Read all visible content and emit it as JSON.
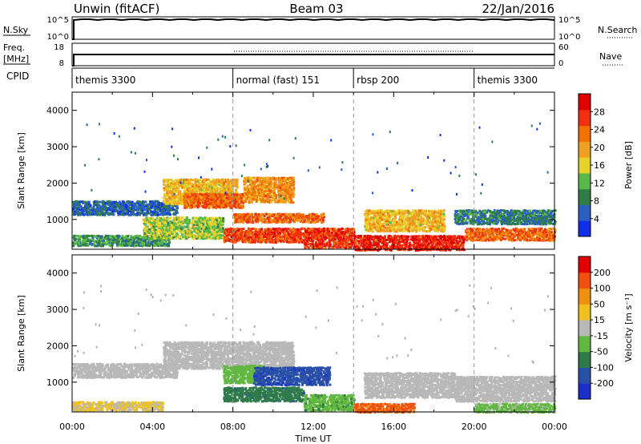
{
  "header": {
    "site": "Unwin (fitACF)",
    "beam": "Beam 03",
    "date": "22/Jan/2016"
  },
  "panels": {
    "nsky_label": "N.Sky",
    "nsky_ticks": [
      "10^5",
      "10^0"
    ],
    "nsearch_label": "N.Search",
    "freq_label": "Freq.",
    "freq_unit": "[MHz]",
    "freq_ticks": [
      "18",
      "8"
    ],
    "nave_label": "Nave",
    "nave_ticks": [
      "60",
      "0"
    ],
    "cpid_label": "CPID"
  },
  "cpid_segments": [
    {
      "label": "themis 3300",
      "start_hr": 0,
      "end_hr": 8
    },
    {
      "label": "normal (fast) 151",
      "start_hr": 8,
      "end_hr": 14
    },
    {
      "label": "rbsp 200",
      "start_hr": 14,
      "end_hr": 20
    },
    {
      "label": "themis 3300",
      "start_hr": 20,
      "end_hr": 24
    }
  ],
  "colors": {
    "power_scale": [
      "#1030e8",
      "#2a5fc0",
      "#2e7d46",
      "#58b848",
      "#e8d02a",
      "#f0a020",
      "#f07000",
      "#f03010",
      "#e00000"
    ],
    "velocity_scale": [
      "#1a30c8",
      "#2850a8",
      "#2e7a4a",
      "#60b840",
      "#b8b8b8",
      "#f0c020",
      "#f09010",
      "#f05010",
      "#e00000"
    ],
    "scatter_grey": "#b4b4b4"
  },
  "chart_data": [
    {
      "type": "heatmap",
      "name": "Power",
      "xlabel": "",
      "ylabel": "Slant Range [km]",
      "xlim": [
        0,
        24
      ],
      "ylim": [
        180,
        4500
      ],
      "yticks": [
        1000,
        2000,
        3000,
        4000
      ],
      "colorbar_label": "Power [dB]",
      "colorbar_ticks": [
        "4",
        "8",
        "12",
        "16",
        "20",
        "24",
        "28"
      ],
      "colorbar_range": [
        0,
        32
      ],
      "echo_bands": [
        {
          "t0": 0.0,
          "t1": 5.2,
          "r0": 1150,
          "r1": 1550,
          "value": 6
        },
        {
          "t0": 0.0,
          "t1": 4.8,
          "r0": 300,
          "r1": 600,
          "value": 10
        },
        {
          "t0": 4.5,
          "t1": 8.2,
          "r0": 1450,
          "r1": 2150,
          "value": 18
        },
        {
          "t0": 5.5,
          "t1": 8.5,
          "r0": 1350,
          "r1": 1750,
          "value": 24
        },
        {
          "t0": 8.5,
          "t1": 11.0,
          "r0": 1500,
          "r1": 2200,
          "value": 21
        },
        {
          "t0": 3.5,
          "t1": 7.5,
          "r0": 500,
          "r1": 1100,
          "value": 14
        },
        {
          "t0": 8.0,
          "t1": 12.5,
          "r0": 950,
          "r1": 1200,
          "value": 24
        },
        {
          "t0": 7.5,
          "t1": 11.5,
          "r0": 400,
          "r1": 800,
          "value": 26
        },
        {
          "t0": 11.5,
          "t1": 14.0,
          "r0": 250,
          "r1": 800,
          "value": 27
        },
        {
          "t0": 14.0,
          "t1": 19.5,
          "r0": 180,
          "r1": 600,
          "value": 28
        },
        {
          "t0": 14.5,
          "t1": 18.5,
          "r0": 700,
          "r1": 1300,
          "value": 18
        },
        {
          "t0": 19.0,
          "t1": 24.0,
          "r0": 900,
          "r1": 1300,
          "value": 8
        },
        {
          "t0": 19.5,
          "t1": 24.0,
          "r0": 450,
          "r1": 800,
          "value": 24
        }
      ]
    },
    {
      "type": "heatmap",
      "name": "Velocity",
      "xlabel": "Time UT",
      "ylabel": "Slant Range [km]",
      "xlim": [
        0,
        24
      ],
      "ylim": [
        180,
        4500
      ],
      "xticks": [
        "00:00",
        "04:00",
        "08:00",
        "12:00",
        "16:00",
        "20:00",
        "00:00"
      ],
      "yticks": [
        1000,
        2000,
        3000,
        4000
      ],
      "colorbar_label": "Velocity [m s⁻¹]",
      "colorbar_ticks": [
        "-200",
        "-100",
        "-50",
        "-15",
        "15",
        "50",
        "100",
        "200"
      ],
      "colorbar_range": [
        -250,
        250
      ],
      "echo_bands": [
        {
          "t0": 0.0,
          "t1": 5.2,
          "r0": 1150,
          "r1": 1550,
          "value": 0
        },
        {
          "t0": 0.0,
          "t1": 4.5,
          "r0": 250,
          "r1": 500,
          "value": 30
        },
        {
          "t0": 4.5,
          "t1": 11.0,
          "r0": 1400,
          "r1": 2150,
          "value": -5
        },
        {
          "t0": 7.5,
          "t1": 9.5,
          "r0": 1000,
          "r1": 1500,
          "value": -60
        },
        {
          "t0": 9.0,
          "t1": 12.8,
          "r0": 950,
          "r1": 1450,
          "value": -180
        },
        {
          "t0": 7.5,
          "t1": 11.5,
          "r0": 500,
          "r1": 900,
          "value": -120
        },
        {
          "t0": 11.5,
          "t1": 14.0,
          "r0": 250,
          "r1": 700,
          "value": -70
        },
        {
          "t0": 14.0,
          "t1": 17.0,
          "r0": 200,
          "r1": 450,
          "value": 150
        },
        {
          "t0": 14.5,
          "t1": 19.0,
          "r0": 600,
          "r1": 1300,
          "value": 0
        },
        {
          "t0": 19.0,
          "t1": 24.0,
          "r0": 500,
          "r1": 1200,
          "value": 0
        },
        {
          "t0": 20.0,
          "t1": 24.0,
          "r0": 200,
          "r1": 450,
          "value": -40
        }
      ]
    }
  ]
}
